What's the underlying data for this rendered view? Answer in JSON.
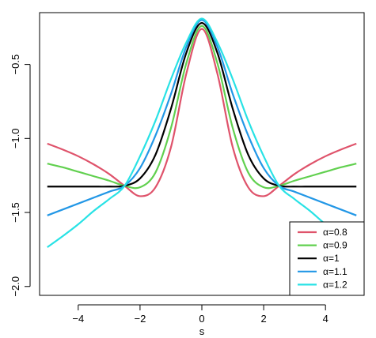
{
  "chart_data": {
    "type": "line",
    "title": "",
    "xlabel": "s",
    "ylabel": "",
    "xlim": [
      -5.25,
      5.25
    ],
    "ylim": [
      -2.06,
      -0.15
    ],
    "xticks": [
      -4,
      -2,
      0,
      2,
      4
    ],
    "xtick_labels": [
      "−4",
      "−2",
      "0",
      "2",
      "4"
    ],
    "yticks": [
      -0.5,
      -1.0,
      -1.5,
      -2.0
    ],
    "ytick_labels": [
      "−0.5",
      "−1.0",
      "−1.5",
      "−2.0"
    ],
    "grid": false,
    "legend_position": "bottom-right",
    "x": [
      -5,
      -4.5,
      -4,
      -3.5,
      -3,
      -2.5,
      -2,
      -1.5,
      -1,
      -0.5,
      0,
      0.5,
      1,
      1.5,
      2,
      2.5,
      3,
      3.5,
      4,
      4.5,
      5
    ],
    "series": [
      {
        "name": "α=0.8",
        "color": "#DF536B",
        "values": [
          -1.035,
          -1.075,
          -1.12,
          -1.175,
          -1.24,
          -1.32,
          -1.39,
          -1.33,
          -1.06,
          -0.56,
          -0.26,
          -0.56,
          -1.06,
          -1.33,
          -1.39,
          -1.32,
          -1.24,
          -1.175,
          -1.12,
          -1.075,
          -1.035
        ]
      },
      {
        "name": "α=0.9",
        "color": "#61D04F",
        "values": [
          -1.17,
          -1.195,
          -1.225,
          -1.255,
          -1.285,
          -1.32,
          -1.33,
          -1.23,
          -0.93,
          -0.49,
          -0.24,
          -0.49,
          -0.93,
          -1.23,
          -1.33,
          -1.32,
          -1.285,
          -1.255,
          -1.225,
          -1.195,
          -1.17
        ]
      },
      {
        "name": "α=1",
        "color": "#000000",
        "values": [
          -1.325,
          -1.325,
          -1.325,
          -1.325,
          -1.325,
          -1.32,
          -1.27,
          -1.11,
          -0.8,
          -0.42,
          -0.22,
          -0.42,
          -0.8,
          -1.11,
          -1.27,
          -1.32,
          -1.325,
          -1.325,
          -1.325,
          -1.325,
          -1.325
        ]
      },
      {
        "name": "α=1.1",
        "color": "#2297E6",
        "values": [
          -1.52,
          -1.48,
          -1.44,
          -1.4,
          -1.36,
          -1.32,
          -1.2,
          -0.98,
          -0.7,
          -0.38,
          -0.2,
          -0.38,
          -0.7,
          -0.98,
          -1.2,
          -1.32,
          -1.36,
          -1.4,
          -1.44,
          -1.48,
          -1.52
        ]
      },
      {
        "name": "α=1.2",
        "color": "#28E2E5",
        "values": [
          -1.735,
          -1.66,
          -1.58,
          -1.49,
          -1.41,
          -1.32,
          -1.12,
          -0.88,
          -0.6,
          -0.35,
          -0.19,
          -0.35,
          -0.6,
          -0.88,
          -1.12,
          -1.32,
          -1.41,
          -1.49,
          -1.58,
          -1.66,
          -1.735
        ]
      }
    ]
  }
}
